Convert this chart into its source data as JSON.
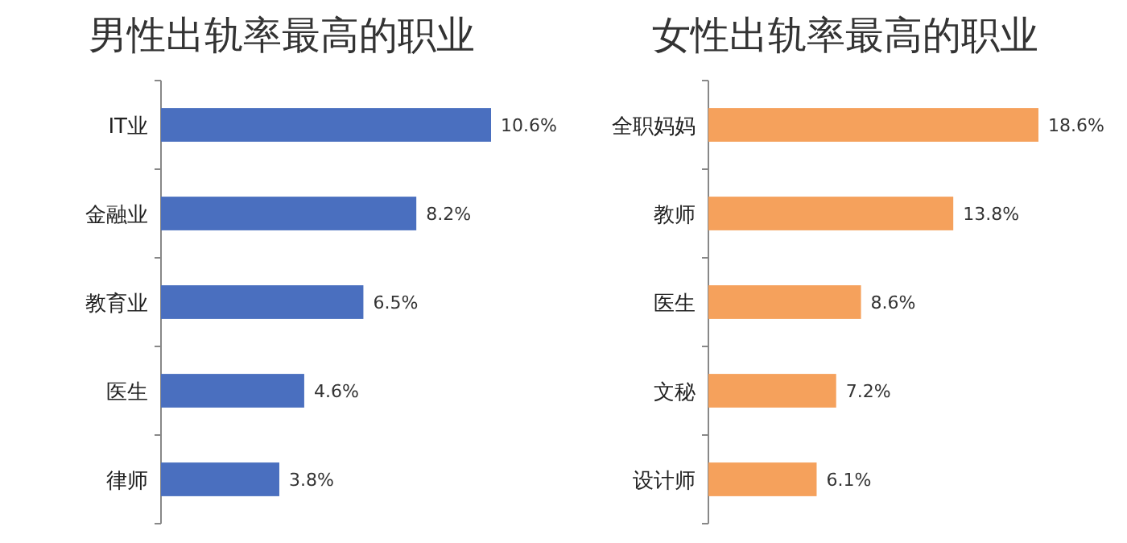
{
  "chart_data": [
    {
      "type": "bar",
      "orientation": "horizontal",
      "title": "男性出轨率最高的职业",
      "categories": [
        "IT业",
        "金融业",
        "教育业",
        "医生",
        "律师"
      ],
      "values": [
        10.6,
        8.2,
        6.5,
        4.6,
        3.8
      ],
      "value_labels": [
        "10.6%",
        "8.2%",
        "6.5%",
        "4.6%",
        "3.8%"
      ],
      "color": "#4a6fbf"
    },
    {
      "type": "bar",
      "orientation": "horizontal",
      "title": "女性出轨率最高的职业",
      "categories": [
        "全职妈妈",
        "教师",
        "医生",
        "文秘",
        "设计师"
      ],
      "values": [
        18.6,
        13.8,
        8.6,
        7.2,
        6.1
      ],
      "value_labels": [
        "18.6%",
        "13.8%",
        "8.6%",
        "7.2%",
        "6.1%"
      ],
      "color": "#f5a15c"
    }
  ]
}
